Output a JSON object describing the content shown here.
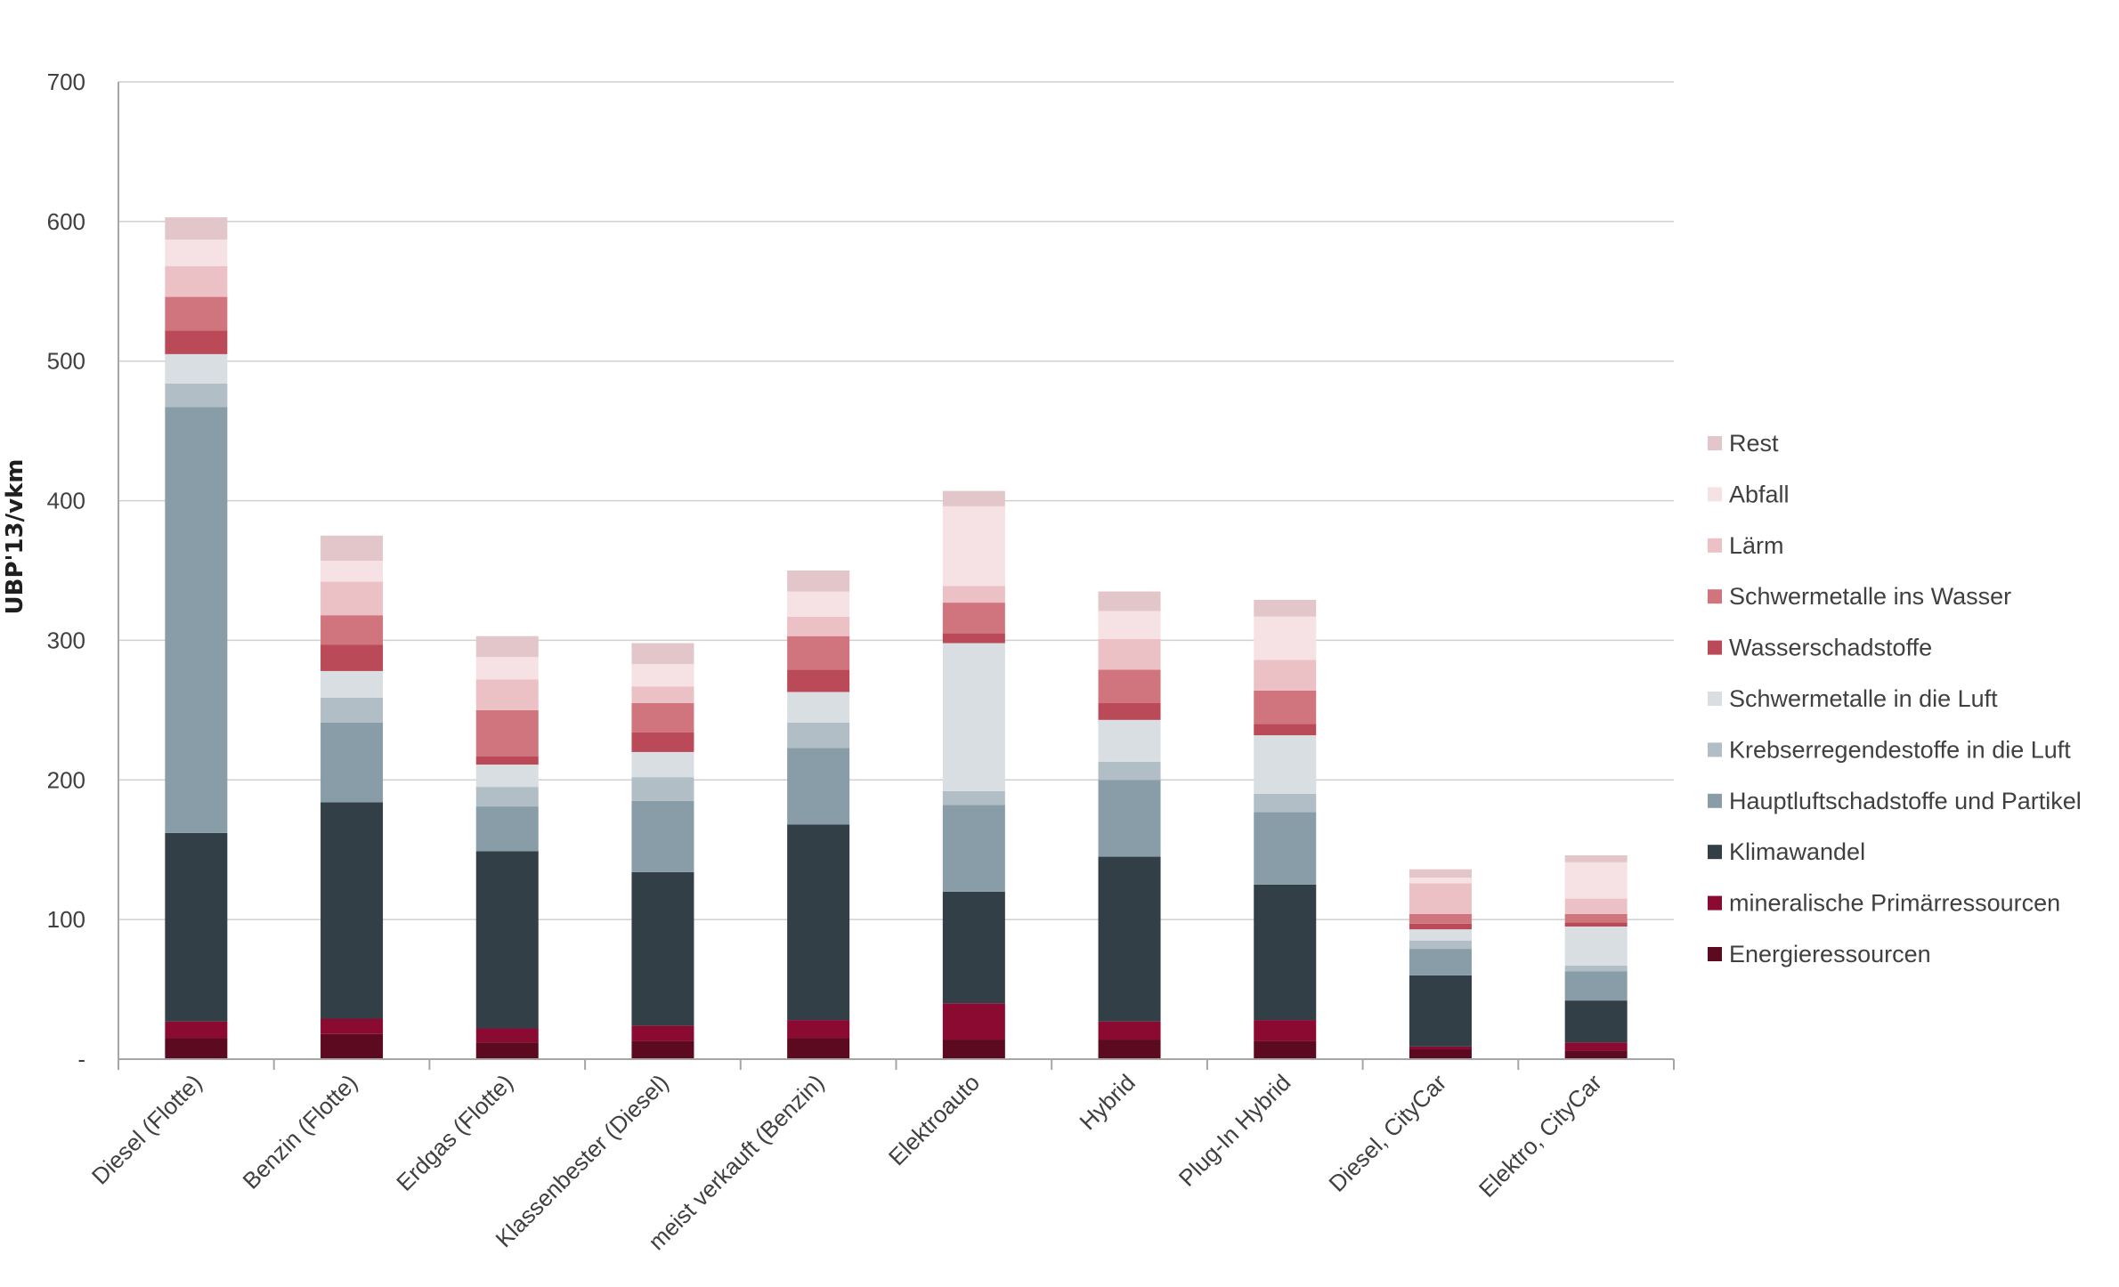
{
  "chart_data": {
    "type": "bar",
    "stacked": true,
    "title": "",
    "xlabel": "",
    "ylabel": "UBP'13/vkm",
    "ylim": [
      0,
      700
    ],
    "yticks": [
      0,
      100,
      200,
      300,
      400,
      500,
      600,
      700
    ],
    "ytick_labels": [
      "-",
      "100",
      "200",
      "300",
      "400",
      "500",
      "600",
      "700"
    ],
    "grid": true,
    "legend_position": "right",
    "categories": [
      "Diesel (Flotte)",
      "Benzin (Flotte)",
      "Erdgas (Flotte)",
      "Klassenbester (Diesel)",
      "meist verkauft (Benzin)",
      "Elektroauto",
      "Hybrid",
      "Plug-In Hybrid",
      "Diesel, CityCar",
      "Elektro, CityCar"
    ],
    "series": [
      {
        "name": "Energieressourcen",
        "color": "#5c0a1f",
        "values": [
          15,
          18,
          12,
          13,
          15,
          14,
          14,
          13,
          7,
          6
        ]
      },
      {
        "name": "mineralische Primärressourcen",
        "color": "#8b0a31",
        "values": [
          12,
          11,
          10,
          11,
          13,
          26,
          13,
          15,
          2,
          6
        ]
      },
      {
        "name": "Klimawandel",
        "color": "#323f46",
        "values": [
          135,
          155,
          127,
          110,
          140,
          80,
          118,
          97,
          51,
          30
        ]
      },
      {
        "name": "Hauptluftschadstoffe und Partikel",
        "color": "#889da8",
        "values": [
          305,
          57,
          32,
          51,
          55,
          62,
          55,
          52,
          19,
          21
        ]
      },
      {
        "name": "Krebserregendestoffe in die Luft",
        "color": "#b2bec5",
        "values": [
          17,
          18,
          14,
          17,
          18,
          10,
          13,
          13,
          6,
          4
        ]
      },
      {
        "name": "Schwermetalle in die Luft",
        "color": "#d8dee1",
        "values": [
          21,
          19,
          16,
          18,
          22,
          106,
          30,
          42,
          8,
          28
        ]
      },
      {
        "name": "Wasserschadstoffe",
        "color": "#bb4a58",
        "values": [
          17,
          19,
          6,
          14,
          16,
          7,
          12,
          8,
          4,
          3
        ]
      },
      {
        "name": "Schwermetalle ins Wasser",
        "color": "#d0757e",
        "values": [
          24,
          21,
          33,
          21,
          24,
          22,
          24,
          24,
          7,
          6
        ]
      },
      {
        "name": "Lärm",
        "color": "#ebc1c5",
        "values": [
          22,
          24,
          22,
          12,
          14,
          12,
          22,
          22,
          22,
          11
        ]
      },
      {
        "name": "Abfall",
        "color": "#f6e2e4",
        "values": [
          19,
          15,
          16,
          16,
          18,
          57,
          20,
          31,
          4,
          26
        ]
      },
      {
        "name": "Rest",
        "color": "#e2c6ca",
        "values": [
          16,
          18,
          15,
          15,
          15,
          11,
          14,
          12,
          6,
          5
        ]
      }
    ]
  }
}
